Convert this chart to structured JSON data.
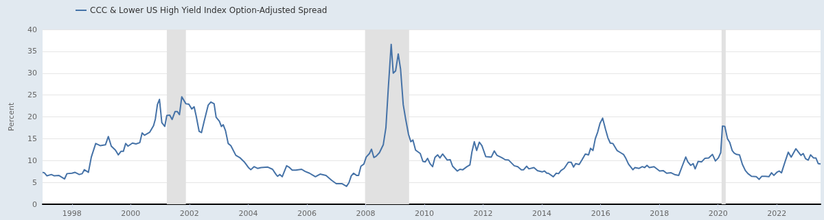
{
  "chart_data": {
    "type": "line",
    "ylabel": "Percent",
    "legend": "top left",
    "grid": "y",
    "xlim": [
      1997.0,
      2023.49
    ],
    "xticks": [
      1998,
      2000,
      2002,
      2004,
      2006,
      2008,
      2010,
      2012,
      2014,
      2016,
      2018,
      2020,
      2022
    ],
    "ylim": [
      0,
      40
    ],
    "yticks": [
      0,
      5,
      10,
      15,
      20,
      25,
      30,
      35,
      40
    ],
    "bands": [
      {
        "axis": "x",
        "from": 2001.23,
        "to": 2001.88,
        "color": "#e1e1e1"
      },
      {
        "axis": "x",
        "from": 2007.98,
        "to": 2009.48,
        "color": "#e1e1e1"
      },
      {
        "axis": "x",
        "from": 2020.12,
        "to": 2020.26,
        "color": "#e1e1e1"
      }
    ],
    "series": [
      {
        "name": "CCC & Lower US High Yield Index Option-Adjusted Spread",
        "color": "#4572a7",
        "x": [
          1997.0,
          1997.06,
          1997.15,
          1997.3,
          1997.4,
          1997.55,
          1997.75,
          1997.83,
          1998.0,
          1998.1,
          1998.25,
          1998.35,
          1998.42,
          1998.56,
          1998.66,
          1998.81,
          1998.97,
          1999.14,
          1999.24,
          1999.34,
          1999.48,
          1999.58,
          1999.67,
          1999.75,
          1999.83,
          1999.91,
          2000.06,
          2000.18,
          2000.31,
          2000.39,
          2000.47,
          2000.65,
          2000.78,
          2000.84,
          2000.91,
          2000.98,
          2001.06,
          2001.16,
          2001.23,
          2001.33,
          2001.41,
          2001.51,
          2001.59,
          2001.66,
          2001.74,
          2001.88,
          2001.98,
          2002.08,
          2002.16,
          2002.23,
          2002.33,
          2002.41,
          2002.51,
          2002.64,
          2002.73,
          2002.84,
          2002.91,
          2003.02,
          2003.09,
          2003.15,
          2003.23,
          2003.32,
          2003.41,
          2003.58,
          2003.73,
          2003.88,
          2004.01,
          2004.09,
          2004.2,
          2004.32,
          2004.44,
          2004.67,
          2004.83,
          2004.95,
          2005.0,
          2005.08,
          2005.16,
          2005.31,
          2005.39,
          2005.5,
          2005.62,
          2005.82,
          2005.94,
          2006.09,
          2006.29,
          2006.45,
          2006.65,
          2006.84,
          2007.0,
          2007.2,
          2007.35,
          2007.43,
          2007.51,
          2007.59,
          2007.69,
          2007.76,
          2007.84,
          2007.94,
          2008.02,
          2008.13,
          2008.2,
          2008.28,
          2008.36,
          2008.47,
          2008.6,
          2008.69,
          2008.77,
          2008.87,
          2008.94,
          2009.02,
          2009.11,
          2009.19,
          2009.28,
          2009.36,
          2009.46,
          2009.54,
          2009.61,
          2009.7,
          2009.86,
          2009.95,
          2010.03,
          2010.11,
          2010.19,
          2010.28,
          2010.36,
          2010.45,
          2010.53,
          2010.62,
          2010.78,
          2010.88,
          2010.96,
          2011.12,
          2011.21,
          2011.31,
          2011.45,
          2011.55,
          2011.62,
          2011.7,
          2011.78,
          2011.87,
          2011.96,
          2012.09,
          2012.28,
          2012.38,
          2012.47,
          2012.63,
          2012.75,
          2012.87,
          2013.06,
          2013.18,
          2013.3,
          2013.38,
          2013.48,
          2013.56,
          2013.73,
          2013.85,
          2014.01,
          2014.09,
          2014.17,
          2014.22,
          2014.39,
          2014.49,
          2014.57,
          2014.65,
          2014.76,
          2014.9,
          2015.0,
          2015.08,
          2015.15,
          2015.27,
          2015.37,
          2015.48,
          2015.59,
          2015.66,
          2015.74,
          2015.82,
          2015.9,
          2015.98,
          2016.07,
          2016.17,
          2016.25,
          2016.33,
          2016.42,
          2016.56,
          2016.68,
          2016.78,
          2016.86,
          2016.95,
          2017.1,
          2017.17,
          2017.31,
          2017.42,
          2017.5,
          2017.58,
          2017.66,
          2017.82,
          2018.01,
          2018.13,
          2018.25,
          2018.4,
          2018.52,
          2018.66,
          2018.79,
          2018.9,
          2018.97,
          2019.07,
          2019.15,
          2019.22,
          2019.32,
          2019.44,
          2019.55,
          2019.68,
          2019.81,
          2019.91,
          2020.01,
          2020.09,
          2020.15,
          2020.23,
          2020.32,
          2020.4,
          2020.48,
          2020.55,
          2020.63,
          2020.73,
          2020.83,
          2020.93,
          2021.02,
          2021.14,
          2021.3,
          2021.4,
          2021.49,
          2021.61,
          2021.73,
          2021.82,
          2021.9,
          2022.0,
          2022.08,
          2022.16,
          2022.28,
          2022.39,
          2022.49,
          2022.65,
          2022.74,
          2022.82,
          2022.9,
          2022.98,
          2023.07,
          2023.15,
          2023.25,
          2023.33,
          2023.41,
          2023.49
        ],
        "values": [
          7.3,
          7.2,
          6.5,
          6.8,
          6.5,
          6.6,
          5.8,
          7.0,
          7.1,
          7.3,
          6.8,
          7.0,
          7.9,
          7.3,
          10.8,
          13.9,
          13.4,
          13.6,
          15.5,
          13.3,
          12.4,
          11.3,
          12.1,
          12.1,
          13.9,
          13.3,
          14.0,
          13.8,
          14.1,
          16.3,
          15.8,
          16.5,
          18.0,
          19.5,
          22.8,
          24.0,
          18.7,
          17.8,
          20.3,
          20.4,
          19.4,
          21.2,
          21.2,
          20.5,
          24.6,
          23.0,
          22.9,
          21.8,
          22.3,
          20.2,
          16.7,
          16.4,
          19.2,
          22.7,
          23.4,
          23.0,
          19.9,
          19.0,
          17.8,
          18.2,
          16.8,
          13.9,
          13.4,
          11.2,
          10.6,
          9.6,
          8.4,
          7.9,
          8.6,
          8.2,
          8.4,
          8.5,
          8.0,
          6.8,
          6.4,
          6.8,
          6.3,
          8.8,
          8.5,
          7.8,
          7.8,
          8.0,
          7.5,
          7.1,
          6.3,
          6.9,
          6.6,
          5.5,
          4.7,
          4.7,
          4.1,
          4.9,
          6.5,
          7.1,
          6.6,
          6.6,
          8.7,
          9.2,
          10.8,
          11.6,
          12.6,
          10.7,
          11.0,
          11.8,
          13.6,
          17.5,
          26.4,
          36.6,
          30.0,
          30.5,
          34.4,
          30.9,
          22.8,
          19.6,
          16.0,
          14.3,
          14.7,
          12.4,
          11.6,
          9.8,
          9.7,
          10.5,
          9.3,
          8.6,
          10.7,
          11.3,
          10.6,
          11.5,
          10.1,
          10.2,
          8.7,
          7.6,
          8.0,
          7.9,
          8.6,
          9.0,
          12.0,
          14.3,
          12.3,
          14.2,
          13.4,
          10.9,
          10.8,
          12.2,
          11.2,
          10.7,
          10.2,
          10.1,
          8.8,
          8.6,
          7.9,
          7.9,
          8.7,
          8.1,
          8.4,
          7.7,
          7.4,
          7.6,
          7.1,
          7.1,
          6.3,
          7.1,
          7.0,
          7.7,
          8.2,
          9.6,
          9.6,
          8.5,
          9.3,
          9.1,
          10.2,
          11.5,
          11.3,
          12.8,
          12.3,
          15.0,
          16.5,
          18.5,
          19.7,
          17.1,
          15.2,
          14.0,
          13.9,
          12.3,
          11.8,
          11.4,
          10.5,
          9.2,
          7.9,
          8.4,
          8.2,
          8.6,
          8.4,
          8.9,
          8.4,
          8.6,
          7.6,
          7.7,
          7.1,
          7.2,
          6.8,
          6.6,
          8.9,
          10.8,
          9.7,
          8.9,
          9.3,
          8.1,
          9.8,
          9.7,
          10.5,
          10.6,
          11.4,
          9.9,
          10.6,
          11.8,
          17.9,
          17.8,
          15.0,
          14.1,
          12.3,
          11.7,
          11.4,
          11.3,
          9.1,
          7.7,
          7.0,
          6.4,
          6.3,
          5.7,
          6.4,
          6.4,
          6.3,
          7.2,
          6.6,
          7.3,
          7.6,
          7.2,
          9.7,
          11.9,
          10.8,
          12.7,
          11.9,
          11.2,
          11.6,
          10.4,
          10.1,
          11.3,
          10.6,
          10.6,
          9.3,
          9.2
        ]
      }
    ]
  }
}
